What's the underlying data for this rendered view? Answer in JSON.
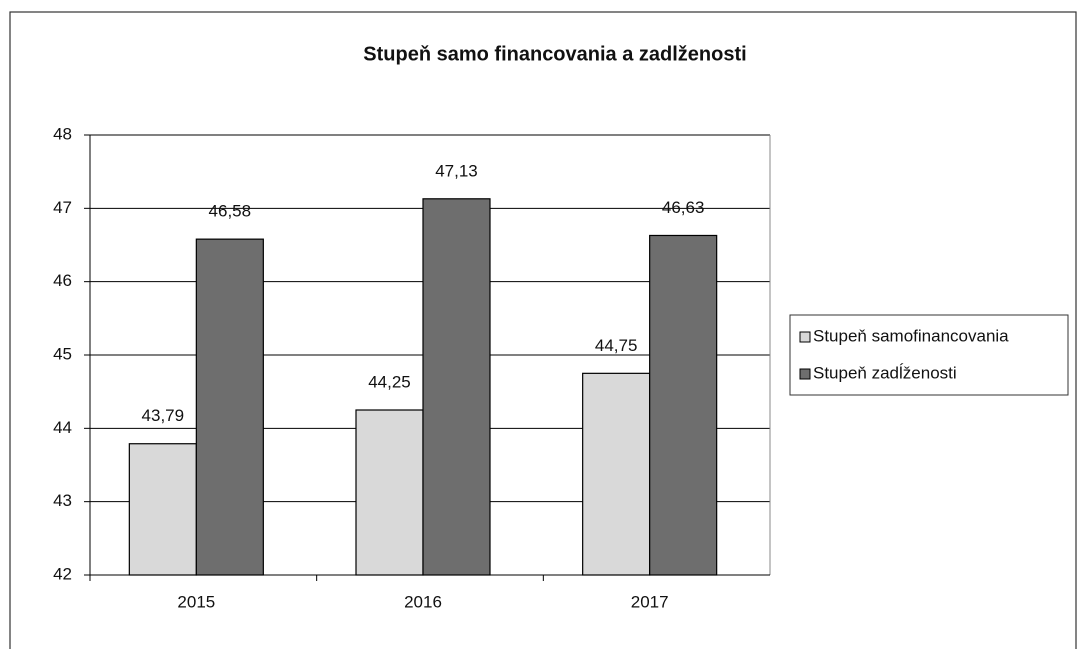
{
  "chart_data": {
    "type": "bar",
    "title": "Stupeň samo financovania  a zadlženosti",
    "categories": [
      "2015",
      "2016",
      "2017"
    ],
    "series": [
      {
        "name": "Stupeň samofinancovania",
        "color": "#d9d9d9",
        "values": [
          43.79,
          44.25,
          44.75
        ],
        "value_labels": [
          "43,79",
          "44,25",
          "44,75"
        ]
      },
      {
        "name": "Stupeň zadĺženosti",
        "color": "#6e6e6e",
        "values": [
          46.58,
          47.13,
          46.63
        ],
        "value_labels": [
          "46,58",
          "47,13",
          "46,63"
        ]
      }
    ],
    "ylim": [
      42,
      48
    ],
    "yticks": [
      42,
      43,
      44,
      45,
      46,
      47,
      48
    ],
    "grid": true,
    "legend": "right"
  }
}
